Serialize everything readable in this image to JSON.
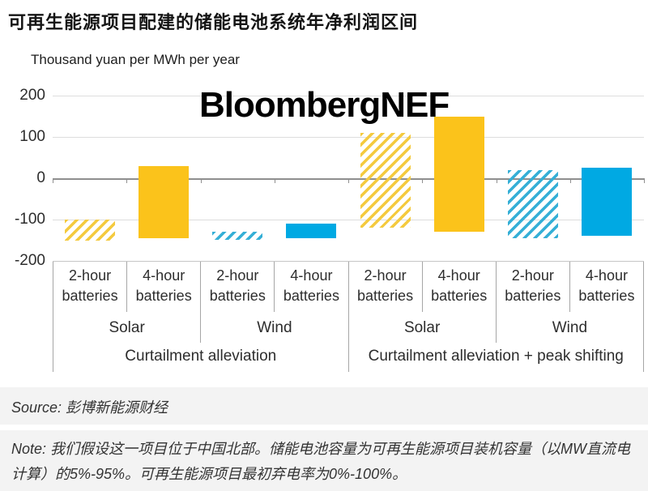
{
  "page": {
    "title": "可再生能源项目配建的储能电池系统年净利润区间",
    "watermark": "BloombergNEF",
    "source_text": "Source: 彭博新能源财经",
    "note_text": "Note: 我们假设这一项目位于中国北部。储能电池容量为可再生能源项目装机容量（以MW直流电计算）的5%-95%。可再生能源项目最初弃电率为0%-100%。"
  },
  "chart_data": {
    "type": "bar",
    "subtype": "floating-range-columns",
    "title": "可再生能源项目配建的储能电池系统年净利润区间",
    "unit_label": "Thousand yuan per MWh per year",
    "ylim": [
      -200,
      200
    ],
    "yticks": [
      200,
      100,
      0,
      -100,
      -200
    ],
    "grid": true,
    "legend_position": "none",
    "colors": {
      "solar": "#FBC31B",
      "wind": "#00A9E3"
    },
    "supergroups": [
      "Curtailment alleviation",
      "Curtailment alleviation + peak shifting"
    ],
    "groups": [
      "Solar",
      "Wind",
      "Solar",
      "Wind"
    ],
    "bars": [
      {
        "category": "2-hour batteries",
        "group": "Solar",
        "supergroup": "Curtailment alleviation",
        "low": -150,
        "high": -100,
        "color": "solar",
        "hatched": true
      },
      {
        "category": "4-hour batteries",
        "group": "Solar",
        "supergroup": "Curtailment alleviation",
        "low": -145,
        "high": 30,
        "color": "solar",
        "hatched": false
      },
      {
        "category": "2-hour batteries",
        "group": "Wind",
        "supergroup": "Curtailment alleviation",
        "low": -150,
        "high": -130,
        "color": "wind",
        "hatched": true
      },
      {
        "category": "4-hour batteries",
        "group": "Wind",
        "supergroup": "Curtailment alleviation",
        "low": -145,
        "high": -110,
        "color": "wind",
        "hatched": false
      },
      {
        "category": "2-hour batteries",
        "group": "Solar",
        "supergroup": "Curtailment alleviation + peak shifting",
        "low": -120,
        "high": 110,
        "color": "solar",
        "hatched": true
      },
      {
        "category": "4-hour batteries",
        "group": "Solar",
        "supergroup": "Curtailment alleviation + peak shifting",
        "low": -130,
        "high": 150,
        "color": "solar",
        "hatched": false
      },
      {
        "category": "2-hour batteries",
        "group": "Wind",
        "supergroup": "Curtailment alleviation + peak shifting",
        "low": -145,
        "high": 20,
        "color": "wind",
        "hatched": true
      },
      {
        "category": "4-hour batteries",
        "group": "Wind",
        "supergroup": "Curtailment alleviation + peak shifting",
        "low": -140,
        "high": 25,
        "color": "wind",
        "hatched": false
      }
    ]
  }
}
